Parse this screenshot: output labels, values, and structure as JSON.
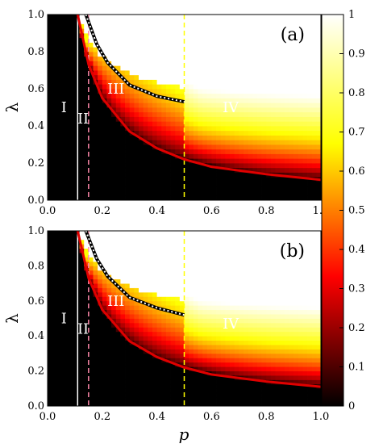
{
  "chart_data": [
    {
      "type": "heatmap",
      "panel_label": "(a)",
      "xlabel": "",
      "ylabel": "λ",
      "xlim": [
        0,
        1
      ],
      "ylim": [
        0,
        1
      ],
      "xticks": [
        "0.0",
        "0.2",
        "0.4",
        "0.6",
        "0.8",
        "1.0"
      ],
      "yticks": [
        "0.0",
        "0.2",
        "0.4",
        "0.6",
        "0.8",
        "1.0"
      ],
      "colormap": "black-red-yellow-white (hot)",
      "color_range": [
        0,
        1
      ],
      "vlines": [
        {
          "x": 0.11,
          "style": "solid",
          "color": "#ffffff"
        },
        {
          "x": 0.15,
          "style": "dashed",
          "color": "#ff88aa"
        },
        {
          "x": 0.5,
          "style": "dashed",
          "color": "#ffff00"
        }
      ],
      "critical_curve": {
        "color": "#e00000",
        "formula": "lambda = 0.11 / p",
        "points": [
          [
            0.11,
            1.0
          ],
          [
            0.15,
            0.73
          ],
          [
            0.2,
            0.55
          ],
          [
            0.3,
            0.37
          ],
          [
            0.4,
            0.28
          ],
          [
            0.5,
            0.22
          ],
          [
            0.6,
            0.18
          ],
          [
            0.8,
            0.14
          ],
          [
            1.0,
            0.11
          ]
        ]
      },
      "boundary_curve": {
        "color": "#ffffff",
        "style": "dotted",
        "points": [
          [
            0.14,
            1.0
          ],
          [
            0.18,
            0.84
          ],
          [
            0.22,
            0.74
          ],
          [
            0.3,
            0.62
          ],
          [
            0.4,
            0.56
          ],
          [
            0.5,
            0.53
          ]
        ]
      },
      "regions": [
        {
          "label": "I",
          "x": 0.06,
          "y": 0.5
        },
        {
          "label": "II",
          "x": 0.13,
          "y": 0.44
        },
        {
          "label": "III",
          "x": 0.25,
          "y": 0.6
        },
        {
          "label": "IV",
          "x": 0.67,
          "y": 0.5
        }
      ]
    },
    {
      "type": "heatmap",
      "panel_label": "(b)",
      "xlabel": "p",
      "ylabel": "λ",
      "xlim": [
        0,
        1
      ],
      "ylim": [
        0,
        1
      ],
      "xticks": [
        "0.0",
        "0.2",
        "0.4",
        "0.6",
        "0.8",
        "1.0"
      ],
      "yticks": [
        "0.0",
        "0.2",
        "0.4",
        "0.6",
        "0.8",
        "1.0"
      ],
      "colormap": "black-red-yellow-white (hot)",
      "color_range": [
        0,
        1
      ],
      "vlines": [
        {
          "x": 0.11,
          "style": "solid",
          "color": "#ffffff"
        },
        {
          "x": 0.15,
          "style": "dashed",
          "color": "#ff88aa"
        },
        {
          "x": 0.5,
          "style": "dashed",
          "color": "#ffff00"
        }
      ],
      "critical_curve": {
        "color": "#e00000",
        "formula": "lambda = 0.11 / p",
        "points": [
          [
            0.11,
            1.0
          ],
          [
            0.15,
            0.73
          ],
          [
            0.2,
            0.55
          ],
          [
            0.3,
            0.37
          ],
          [
            0.4,
            0.28
          ],
          [
            0.5,
            0.22
          ],
          [
            0.6,
            0.18
          ],
          [
            0.8,
            0.14
          ],
          [
            1.0,
            0.11
          ]
        ]
      },
      "boundary_curve": {
        "color": "#ffffff",
        "style": "dotted",
        "points": [
          [
            0.14,
            1.0
          ],
          [
            0.18,
            0.84
          ],
          [
            0.22,
            0.74
          ],
          [
            0.3,
            0.62
          ],
          [
            0.4,
            0.56
          ],
          [
            0.5,
            0.52
          ]
        ]
      },
      "regions": [
        {
          "label": "I",
          "x": 0.06,
          "y": 0.5
        },
        {
          "label": "II",
          "x": 0.13,
          "y": 0.44
        },
        {
          "label": "III",
          "x": 0.25,
          "y": 0.6
        },
        {
          "label": "IV",
          "x": 0.67,
          "y": 0.47
        }
      ]
    }
  ],
  "colorbar": {
    "range": [
      0,
      1
    ],
    "tick_labels": [
      "0",
      "0.1",
      "0.2",
      "0.3",
      "0.4",
      "0.5",
      "0.6",
      "0.7",
      "0.8",
      "0.9",
      "1"
    ]
  }
}
